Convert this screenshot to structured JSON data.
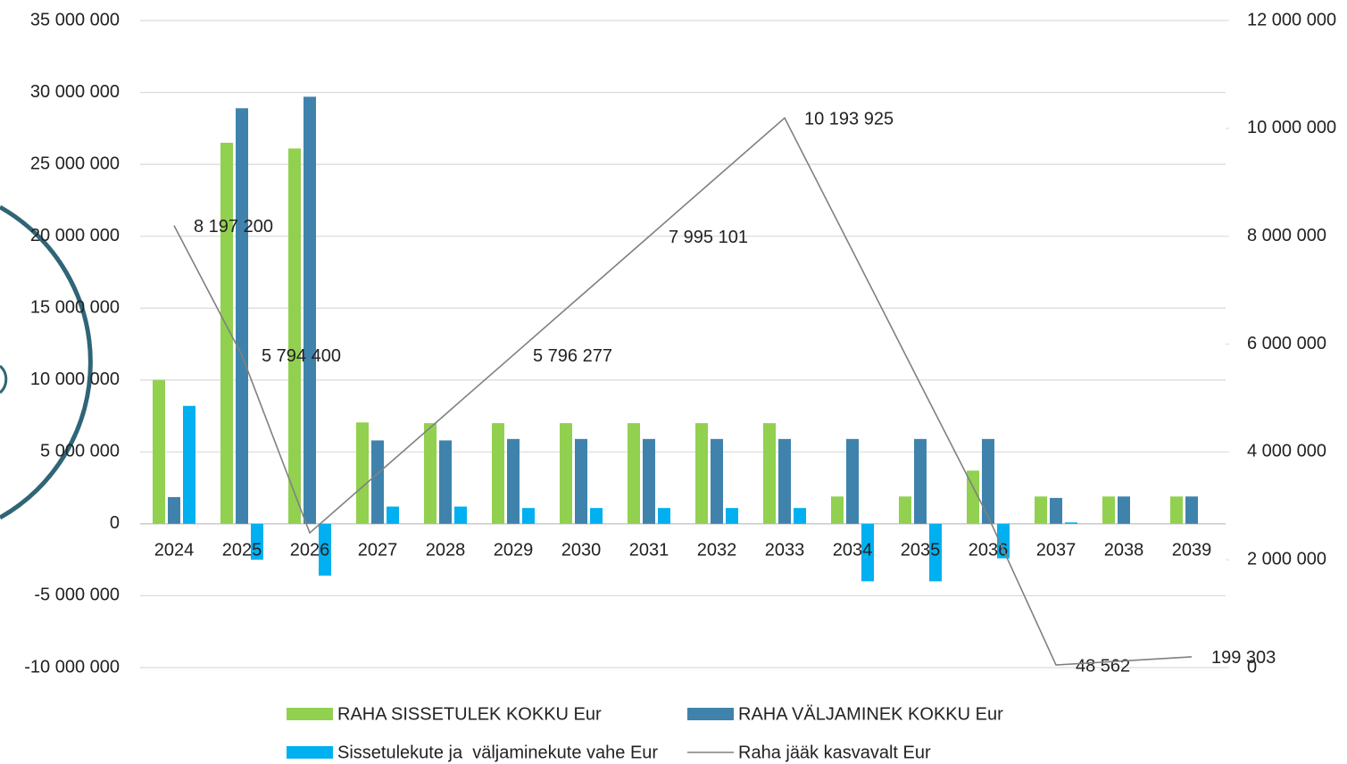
{
  "chart_data": {
    "type": "bar",
    "categories": [
      "2024",
      "2025",
      "2026",
      "2027",
      "2028",
      "2029",
      "2030",
      "2031",
      "2032",
      "2033",
      "2034",
      "2035",
      "2036",
      "2037",
      "2038",
      "2039"
    ],
    "series": [
      {
        "name": "RAHA SISSETULEK KOKKU Eur",
        "color": "#92d050",
        "values": [
          10000000,
          26500000,
          26100000,
          7050000,
          7000000,
          7000000,
          7000000,
          7000000,
          7000000,
          7000000,
          1900000,
          1900000,
          3700000,
          1900000,
          1900000,
          1900000
        ]
      },
      {
        "name": "RAHA VÄLJAMINEK KOKKU Eur",
        "color": "#3f83ad",
        "values": [
          1860000,
          28900000,
          29700000,
          5800000,
          5800000,
          5900000,
          5900000,
          5900000,
          5900000,
          5900000,
          5900000,
          5900000,
          5900000,
          1800000,
          1900000,
          1900000
        ]
      },
      {
        "name": "Sissetulekute ja  väljaminekute vahe Eur",
        "color": "#00b0f0",
        "values": [
          8200000,
          -2500000,
          -3600000,
          1200000,
          1200000,
          1100000,
          1100000,
          1100000,
          1100000,
          1100000,
          -4000000,
          -4000000,
          -2400000,
          100000,
          0,
          0
        ]
      },
      {
        "name": "Raha jääk kasvavalt Eur",
        "color": "#808080",
        "type": "line",
        "axis": "y2",
        "values": [
          8197200,
          5794400,
          2498041,
          3597453,
          4696865,
          5796277,
          6895689,
          7995101,
          9094513,
          10193925,
          7730000,
          5260000,
          2800000,
          48562,
          124000,
          199303
        ],
        "value_labels": [
          "8 197 200",
          "5 794 400",
          null,
          null,
          null,
          "5 796 277",
          null,
          "7 995 101",
          null,
          "10 193 925",
          null,
          null,
          null,
          "48 562",
          null,
          "199 303"
        ]
      }
    ],
    "ylim": [
      -10000000,
      35000000
    ],
    "yticks": [
      {
        "value": -10000000,
        "label": "-10 000 000"
      },
      {
        "value": -5000000,
        "label": "-5 000 000"
      },
      0,
      {
        "value": 5000000,
        "label": "5 000 000"
      },
      {
        "value": 10000000,
        "label": "10 000 000"
      },
      {
        "value": 15000000,
        "label": "15 000 000"
      },
      {
        "value": 20000000,
        "label": "20 000 000"
      },
      {
        "value": 25000000,
        "label": "25 000 000"
      },
      {
        "value": 30000000,
        "label": "30 000 000"
      },
      {
        "value": 35000000,
        "label": "35 000 000"
      }
    ],
    "y2lim": [
      0,
      12000000
    ],
    "y2ticks": [
      0,
      {
        "value": 2000000,
        "label": "2 000 000"
      },
      {
        "value": 4000000,
        "label": "4 000 000"
      },
      {
        "value": 6000000,
        "label": "6 000 000"
      },
      {
        "value": 8000000,
        "label": "8 000 000"
      },
      {
        "value": 10000000,
        "label": "10 000 000"
      },
      {
        "value": 12000000,
        "label": "12 000 000"
      }
    ],
    "grid": true
  }
}
